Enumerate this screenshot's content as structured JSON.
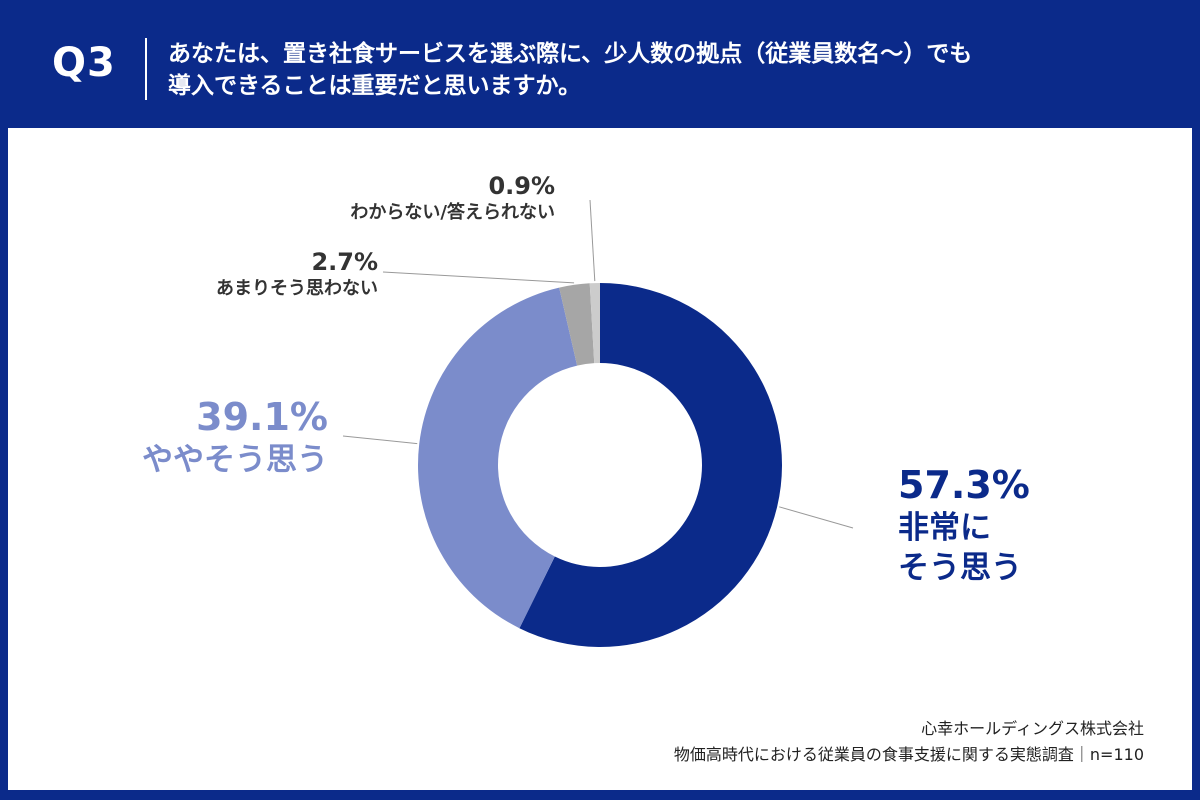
{
  "header": {
    "q_label": "Q3",
    "question_line1": "あなたは、置き社食サービスを選ぶ際に、少人数の拠点（従業員数名〜）でも",
    "question_line2": "導入できることは重要だと思いますか。"
  },
  "chart_data": {
    "type": "pie",
    "donut": true,
    "start_angle_deg": 0,
    "direction": "clockwise",
    "slices": [
      {
        "value": 57.3,
        "value_label": "57.3%",
        "label_lines": [
          "非常に",
          "そう思う"
        ],
        "color": "#0b2a8a"
      },
      {
        "value": 39.1,
        "value_label": "39.1%",
        "label_lines": [
          "ややそう思う"
        ],
        "color": "#7b8ccb"
      },
      {
        "value": 2.7,
        "value_label": "2.7%",
        "label_lines": [
          "あまりそう思わない"
        ],
        "color": "#a6a6a6"
      },
      {
        "value": 0.9,
        "value_label": "0.9%",
        "label_lines": [
          "わからない/答えられない"
        ],
        "color": "#cccccc"
      }
    ]
  },
  "footer": {
    "company": "心幸ホールディングス株式会社",
    "survey": "物価高時代における従業員の食事支援に関する実態調査｜n=110"
  },
  "colors": {
    "brand": "#0b2a8a",
    "accent_light": "#7b8ccb",
    "text_dark": "#333333",
    "leader_line": "#999999"
  }
}
